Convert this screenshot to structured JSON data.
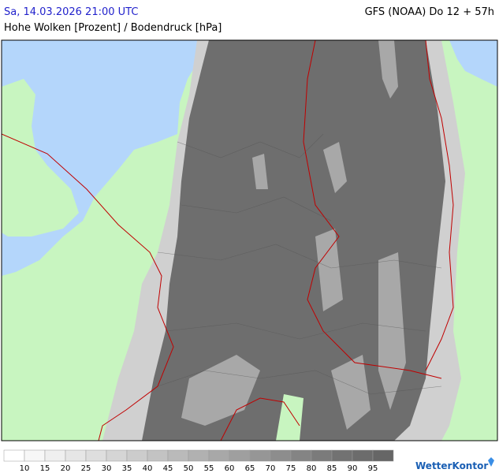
{
  "header": {
    "timestamp": "Sa, 14.03.2026 21:00 UTC",
    "model": "GFS (NOAA) Do 12 + 57h",
    "subtitle": "Hohe Wolken [Prozent] / Bodendruck [hPa]"
  },
  "legend": {
    "ticks": [
      10,
      15,
      20,
      25,
      30,
      35,
      40,
      45,
      50,
      55,
      60,
      65,
      70,
      75,
      80,
      85,
      90,
      95
    ],
    "colors": [
      "#ffffff",
      "#f7f7f7",
      "#efefef",
      "#e6e6e6",
      "#dedede",
      "#d5d5d5",
      "#cccccc",
      "#c3c3c3",
      "#bababa",
      "#b1b1b1",
      "#a8a8a8",
      "#9f9f9f",
      "#969696",
      "#8d8d8d",
      "#848484",
      "#7b7b7b",
      "#727272",
      "#6c6c6c",
      "#666666"
    ]
  },
  "logo": "WetterKontor"
}
